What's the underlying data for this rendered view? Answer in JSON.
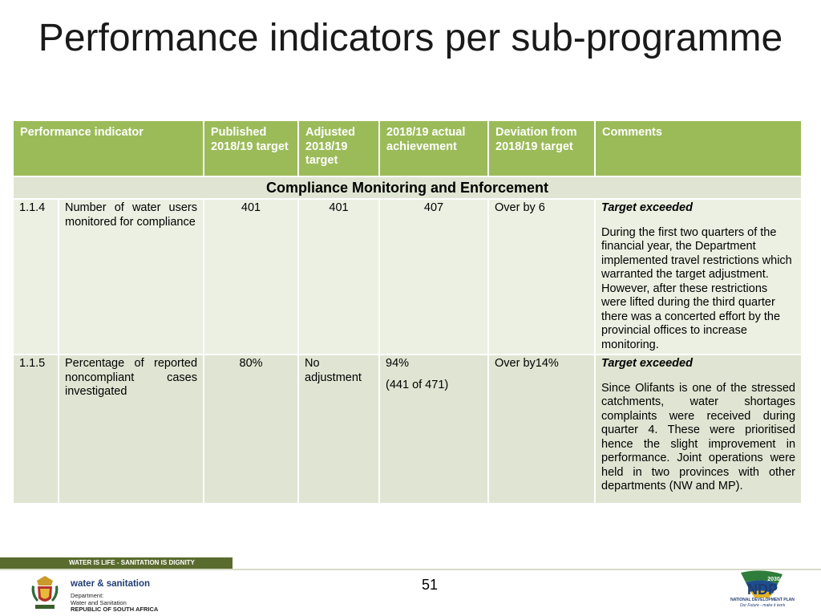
{
  "slide": {
    "title": "Performance indicators per sub-programme",
    "page_number": "51"
  },
  "table": {
    "headers": [
      "Performance indicator",
      "Published 2018/19 target",
      "Adjusted 2018/19 target",
      "2018/19 actual achievement",
      "Deviation from 2018/19 target",
      "Comments"
    ],
    "section": "Compliance Monitoring and Enforcement",
    "rows": [
      {
        "number": "1.1.4",
        "indicator": "Number of water users monitored for compliance",
        "published": "401",
        "adjusted": "401",
        "actual": "407",
        "actual_sub": "",
        "deviation": "Over by 6",
        "comment_head": "Target exceeded",
        "comment_body": "During the first two quarters of the financial year, the Department implemented travel restrictions which warranted the target adjustment. However, after these restrictions were lifted during the third quarter there was a concerted effort by the provincial offices to increase monitoring."
      },
      {
        "number": "1.1.5",
        "indicator": "Percentage of reported noncompliant cases investigated",
        "published": "80%",
        "adjusted": "No adjustment",
        "actual": "94%",
        "actual_sub": "(441 of 471)",
        "deviation": "Over by14%",
        "comment_head": "Target exceeded",
        "comment_body": "Since Olifants is one of the stressed catchments, water shortages complaints were received during quarter 4. These were prioritised hence the slight improvement in performance. Joint operations were held in two provinces with other departments (NW and MP)."
      }
    ]
  },
  "footer": {
    "slogan": "WATER IS LIFE - SANITATION IS DIGNITY",
    "brand": "water & sanitation",
    "dept_lines": [
      "Department:",
      "Water and Sanitation"
    ],
    "country": "REPUBLIC OF SOUTH AFRICA",
    "ndp_year": "2030",
    "ndp_logo_text": "NDP",
    "ndp_name": "NATIONAL DEVELOPMENT PLAN",
    "ndp_tagline": "Our Future - make it work",
    "colors": {
      "header_green": "#9bbb59",
      "row_light": "#ebf0e2",
      "row_mid": "#dfe5d2",
      "band": "#5a6b2e"
    }
  }
}
